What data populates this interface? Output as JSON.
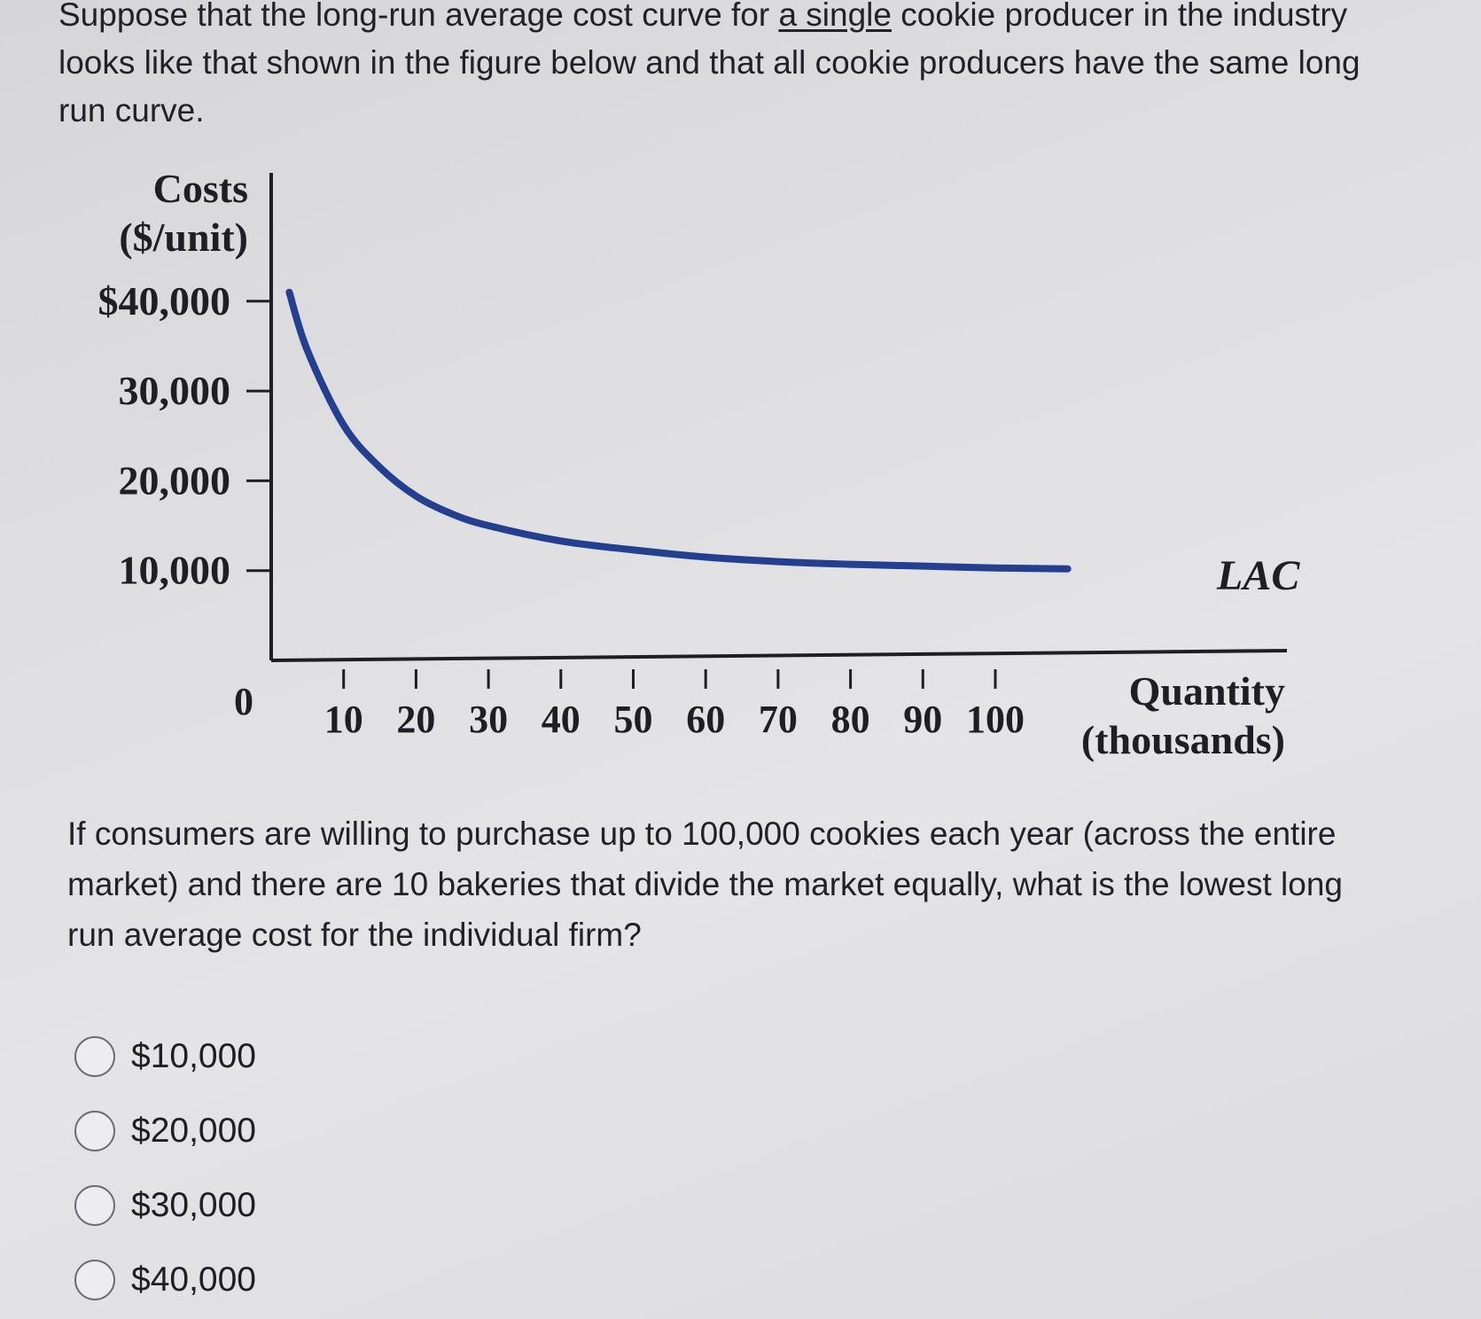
{
  "intro": {
    "before": "Suppose that the long-run average cost curve for ",
    "underlined": "a single",
    "after": " cookie producer in the industry looks like that shown in the figure below and that all cookie producers have the same long run curve."
  },
  "chart_data": {
    "type": "line",
    "title": "",
    "ylabel_line1": "Costs",
    "ylabel_line2": "($/unit)",
    "xlabel_line1": "Quantity",
    "xlabel_line2": "(thousands)",
    "y_ticks": [
      "$40,000",
      "30,000",
      "20,000",
      "10,000"
    ],
    "y_tick_values": [
      40000,
      30000,
      20000,
      10000
    ],
    "x_origin_label": "0",
    "x_ticks": [
      "10",
      "20",
      "30",
      "40",
      "50",
      "60",
      "70",
      "80",
      "90",
      "100"
    ],
    "x_tick_values": [
      10,
      20,
      30,
      40,
      50,
      60,
      70,
      80,
      90,
      100
    ],
    "xlim": [
      0,
      110
    ],
    "ylim": [
      0,
      43000
    ],
    "series": [
      {
        "name": "LAC",
        "color": "#243f8f",
        "x": [
          2.5,
          5,
          10,
          15,
          20,
          25,
          30,
          40,
          50,
          60,
          70,
          80,
          90,
          100,
          110
        ],
        "y": [
          41000,
          34500,
          26200,
          21500,
          18300,
          16300,
          15000,
          13300,
          12300,
          11500,
          11000,
          10700,
          10500,
          10300,
          10200
        ]
      }
    ],
    "grid": false,
    "legend": "none"
  },
  "question": "If consumers are willing to purchase up to 100,000 cookies each year (across the entire market) and there are 10 bakeries that divide the market equally, what is the lowest long run average cost for the individual firm?",
  "options": [
    "$10,000",
    "$20,000",
    "$30,000",
    "$40,000"
  ]
}
